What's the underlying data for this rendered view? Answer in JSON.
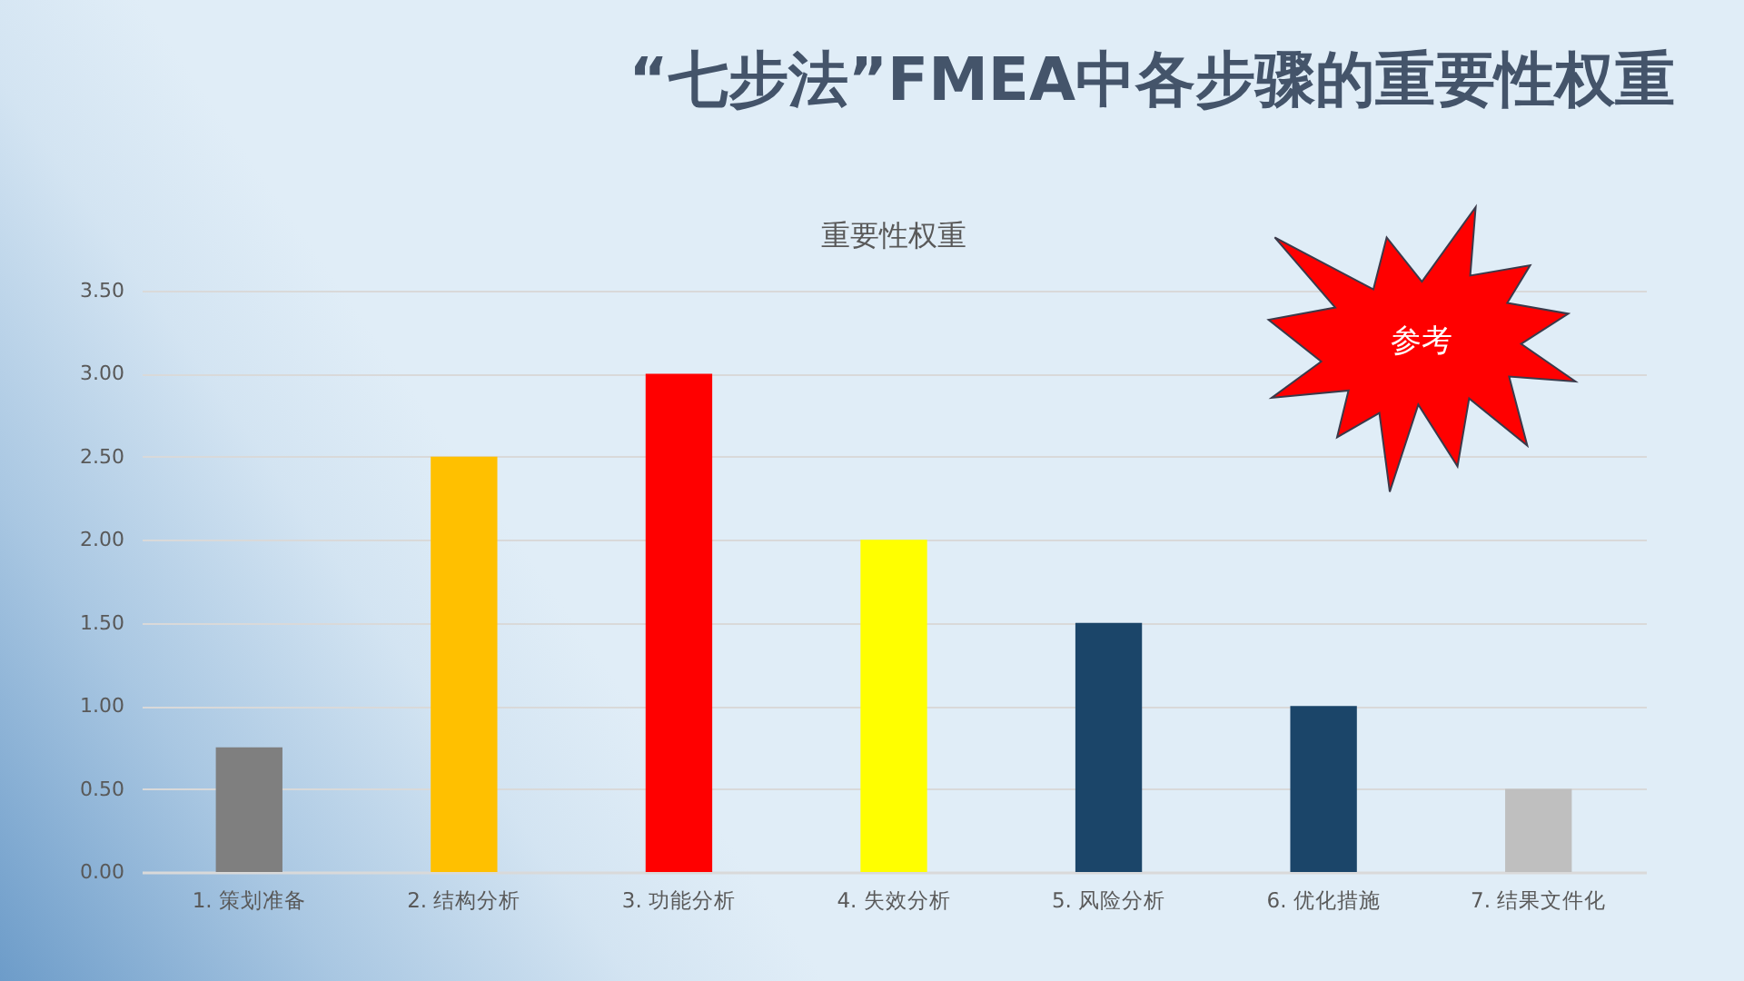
{
  "chart_data": {
    "type": "bar",
    "title": "“七步法”FMEA中各步骤的重要性权重",
    "subtitle": "重要性权重",
    "categories": [
      "1. 策划准备",
      "2. 结构分析",
      "3. 功能分析",
      "4. 失效分析",
      "5. 风险分析",
      "6. 优化措施",
      "7. 结果文件化"
    ],
    "values": [
      0.75,
      2.5,
      3.0,
      2.0,
      1.5,
      1.0,
      0.5
    ],
    "colors": [
      "#7f7f7f",
      "#ffc000",
      "#ff0000",
      "#ffff00",
      "#1b4569",
      "#1b4569",
      "#bfbfbf"
    ],
    "ylim": [
      0,
      3.5
    ],
    "yticks": [
      {
        "value": 0,
        "label": "0.00"
      },
      {
        "value": 0.5,
        "label": "0.50"
      },
      {
        "value": 1,
        "label": "1.00"
      },
      {
        "value": 1.5,
        "label": "1.50"
      },
      {
        "value": 2,
        "label": "2.00"
      },
      {
        "value": 2.5,
        "label": "2.50"
      },
      {
        "value": 3,
        "label": "3.00"
      },
      {
        "value": 3.5,
        "label": "3.50"
      }
    ],
    "grid": "y",
    "annotations": [
      "参考"
    ]
  }
}
